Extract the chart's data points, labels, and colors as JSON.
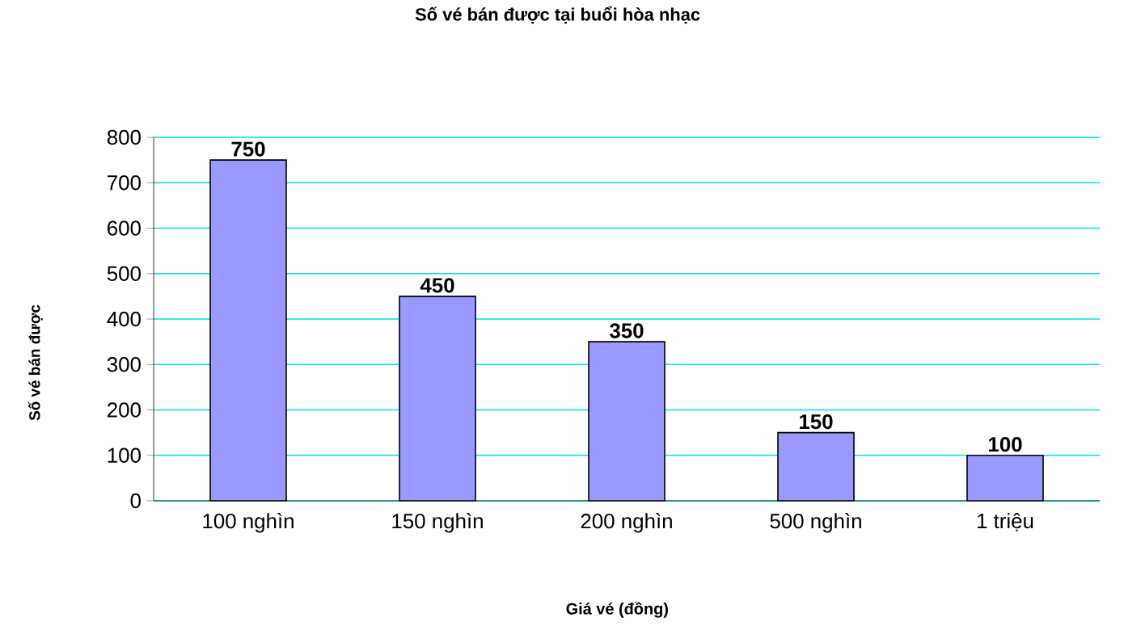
{
  "chart_data": {
    "type": "bar",
    "title": "Số vé bán được tại buổi hòa nhạc",
    "xlabel": "Giá vé (đồng)",
    "ylabel": "Số vé bán được",
    "categories": [
      "100 nghìn",
      "150 nghìn",
      "200 nghìn",
      "500 nghìn",
      "1 triệu"
    ],
    "values": [
      750,
      450,
      350,
      150,
      100
    ],
    "color": "#9999ff",
    "ylim": [
      0,
      800
    ],
    "yticks": [
      0,
      100,
      200,
      300,
      400,
      500,
      600,
      700,
      800
    ],
    "grid": "y",
    "data_labels": true
  }
}
